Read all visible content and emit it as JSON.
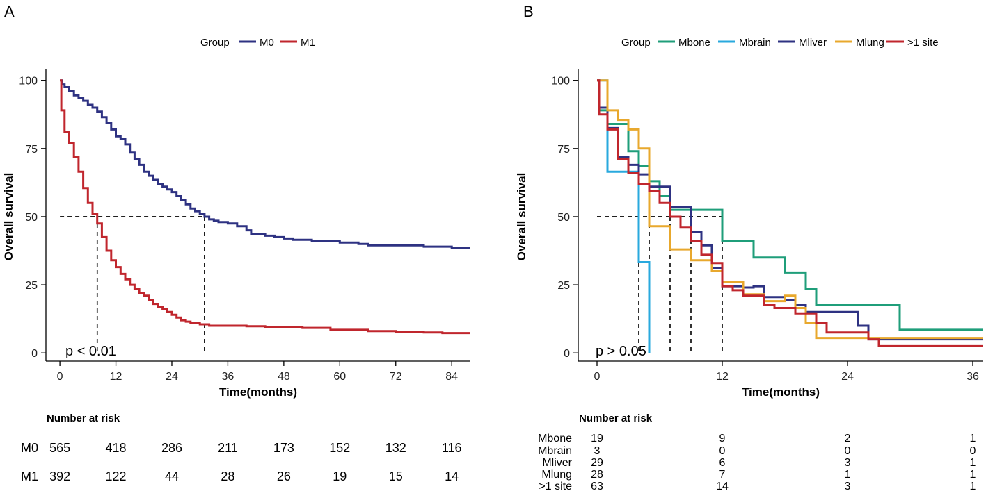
{
  "chart_data": [
    {
      "type": "line",
      "panel_label": "A",
      "legend_title": "Group",
      "xlabel": "Time(months)",
      "ylabel": "Overall survival",
      "xlim": [
        -3,
        88
      ],
      "ylim": [
        -3,
        104
      ],
      "x_ticks": [
        0,
        12,
        24,
        36,
        48,
        60,
        72,
        84
      ],
      "y_ticks": [
        0,
        25,
        50,
        75,
        100
      ],
      "p_value": "p < 0.01",
      "median_line": {
        "y": 50,
        "x_end": 31,
        "medians": [
          8,
          31
        ]
      },
      "series": [
        {
          "name": "M0",
          "color": "#2e3282",
          "points": [
            [
              0,
              100
            ],
            [
              0.5,
              98.5
            ],
            [
              1,
              97.5
            ],
            [
              2,
              96
            ],
            [
              3,
              94.5
            ],
            [
              4,
              93.5
            ],
            [
              5,
              92.5
            ],
            [
              6,
              91
            ],
            [
              7,
              90
            ],
            [
              8,
              88.5
            ],
            [
              9,
              86.5
            ],
            [
              10,
              84.5
            ],
            [
              11,
              82
            ],
            [
              12,
              79.5
            ],
            [
              13,
              78.5
            ],
            [
              14,
              76.5
            ],
            [
              15,
              73.5
            ],
            [
              16,
              71
            ],
            [
              17,
              69
            ],
            [
              18,
              66.5
            ],
            [
              19,
              65
            ],
            [
              20,
              63.5
            ],
            [
              21,
              62
            ],
            [
              22,
              61
            ],
            [
              23,
              60
            ],
            [
              24,
              59
            ],
            [
              25,
              57.5
            ],
            [
              26,
              56
            ],
            [
              27,
              54.5
            ],
            [
              28,
              53
            ],
            [
              29,
              52
            ],
            [
              30,
              51
            ],
            [
              31,
              50
            ],
            [
              32,
              49
            ],
            [
              33,
              48.5
            ],
            [
              34,
              48
            ],
            [
              36,
              47.5
            ],
            [
              38,
              46.5
            ],
            [
              40,
              45
            ],
            [
              41,
              43.5
            ],
            [
              44,
              43
            ],
            [
              46,
              42.5
            ],
            [
              48,
              42
            ],
            [
              50,
              41.5
            ],
            [
              54,
              41
            ],
            [
              60,
              40.5
            ],
            [
              64,
              40
            ],
            [
              66,
              39.5
            ],
            [
              78,
              39
            ],
            [
              84,
              38.5
            ],
            [
              88,
              38.5
            ]
          ]
        },
        {
          "name": "M1",
          "color": "#c0262d",
          "points": [
            [
              0,
              100
            ],
            [
              0.3,
              89
            ],
            [
              1,
              81
            ],
            [
              2,
              77
            ],
            [
              3,
              72
            ],
            [
              4,
              66.5
            ],
            [
              5,
              60.5
            ],
            [
              6,
              55
            ],
            [
              7,
              51
            ],
            [
              8,
              47.5
            ],
            [
              9,
              42.5
            ],
            [
              10,
              37.5
            ],
            [
              11,
              34
            ],
            [
              12,
              31.5
            ],
            [
              13,
              29
            ],
            [
              14,
              27
            ],
            [
              15,
              25
            ],
            [
              16,
              23.5
            ],
            [
              17,
              22
            ],
            [
              18,
              21
            ],
            [
              19,
              19.5
            ],
            [
              20,
              18
            ],
            [
              21,
              17
            ],
            [
              22,
              16
            ],
            [
              23,
              15
            ],
            [
              24,
              14
            ],
            [
              25,
              13
            ],
            [
              26,
              12
            ],
            [
              27,
              11.5
            ],
            [
              28,
              11
            ],
            [
              30,
              10.5
            ],
            [
              32,
              10
            ],
            [
              36,
              10
            ],
            [
              40,
              9.8
            ],
            [
              44,
              9.5
            ],
            [
              52,
              9.2
            ],
            [
              58,
              8.5
            ],
            [
              66,
              8
            ],
            [
              72,
              7.8
            ],
            [
              78,
              7.5
            ],
            [
              82,
              7.3
            ],
            [
              88,
              7.3
            ]
          ]
        }
      ],
      "risk_table": {
        "title": "Number at risk",
        "rows": [
          {
            "name": "M0",
            "values": [
              565,
              418,
              286,
              211,
              173,
              152,
              132,
              116
            ]
          },
          {
            "name": "M1",
            "values": [
              392,
              122,
              44,
              28,
              26,
              19,
              15,
              14
            ]
          }
        ]
      }
    },
    {
      "type": "line",
      "panel_label": "B",
      "legend_title": "Group",
      "xlabel": "Time(months)",
      "ylabel": "Overall survival",
      "xlim": [
        -1.8,
        37
      ],
      "ylim": [
        -3,
        104
      ],
      "x_ticks": [
        0,
        12,
        24,
        36
      ],
      "y_ticks": [
        0,
        25,
        50,
        75,
        100
      ],
      "p_value": "p > 0.05",
      "median_line": {
        "y": 50,
        "x_end": 12,
        "medians": [
          4,
          5,
          7,
          9,
          12
        ]
      },
      "series": [
        {
          "name": "Mbone",
          "color": "#1f9e7a",
          "points": [
            [
              0,
              100
            ],
            [
              0.2,
              89
            ],
            [
              1,
              84
            ],
            [
              3,
              74
            ],
            [
              4,
              68.5
            ],
            [
              5,
              63
            ],
            [
              6,
              57.5
            ],
            [
              7,
              52.5
            ],
            [
              12,
              41
            ],
            [
              15,
              35
            ],
            [
              18,
              29.5
            ],
            [
              20,
              23.5
            ],
            [
              21,
              17.5
            ],
            [
              29,
              8.5
            ],
            [
              37,
              8.5
            ]
          ]
        },
        {
          "name": "Mbrain",
          "color": "#29a9de",
          "points": [
            [
              0,
              100
            ],
            [
              1,
              66.5
            ],
            [
              4,
              33.3
            ],
            [
              5,
              0
            ]
          ]
        },
        {
          "name": "Mliver",
          "color": "#2e3282",
          "points": [
            [
              0,
              100
            ],
            [
              0.2,
              90
            ],
            [
              1,
              82.5
            ],
            [
              2,
              72
            ],
            [
              3,
              69
            ],
            [
              4,
              65.5
            ],
            [
              5,
              61
            ],
            [
              7,
              53.5
            ],
            [
              9,
              44.5
            ],
            [
              10,
              39.5
            ],
            [
              11,
              31
            ],
            [
              12,
              24.5
            ],
            [
              14,
              24
            ],
            [
              15,
              24.5
            ],
            [
              16,
              20.5
            ],
            [
              18,
              19.5
            ],
            [
              19,
              17.5
            ],
            [
              20,
              15
            ],
            [
              25,
              10
            ],
            [
              26,
              5
            ],
            [
              37,
              5
            ]
          ]
        },
        {
          "name": "Mlung",
          "color": "#e8a82d",
          "points": [
            [
              0,
              100
            ],
            [
              1,
              89
            ],
            [
              2,
              85.5
            ],
            [
              3,
              82
            ],
            [
              4,
              75
            ],
            [
              5,
              46.5
            ],
            [
              7,
              38
            ],
            [
              9,
              34
            ],
            [
              11,
              30
            ],
            [
              12,
              26
            ],
            [
              14,
              21.5
            ],
            [
              16,
              19
            ],
            [
              18,
              21
            ],
            [
              19,
              16.5
            ],
            [
              20,
              11
            ],
            [
              21,
              5.5
            ],
            [
              37,
              5.5
            ]
          ]
        },
        {
          "name": ">1 site",
          "color": "#c0262d",
          "points": [
            [
              0,
              100
            ],
            [
              0.2,
              87.5
            ],
            [
              1,
              82
            ],
            [
              2,
              71
            ],
            [
              3,
              66
            ],
            [
              4,
              62
            ],
            [
              5,
              59.5
            ],
            [
              6,
              55
            ],
            [
              7,
              50
            ],
            [
              8,
              46
            ],
            [
              9,
              41
            ],
            [
              10,
              36
            ],
            [
              11,
              33
            ],
            [
              12,
              24.5
            ],
            [
              13,
              23
            ],
            [
              14,
              21
            ],
            [
              16,
              17.5
            ],
            [
              17,
              16.5
            ],
            [
              19,
              14.5
            ],
            [
              21,
              11
            ],
            [
              22,
              7.5
            ],
            [
              26,
              5
            ],
            [
              27,
              2.5
            ],
            [
              37,
              2.5
            ]
          ]
        }
      ],
      "risk_table": {
        "title": "Number at risk",
        "rows": [
          {
            "name": "Mbone",
            "values": [
              19,
              9,
              2,
              1
            ]
          },
          {
            "name": "Mbrain",
            "values": [
              3,
              0,
              0,
              0
            ]
          },
          {
            "name": "Mliver",
            "values": [
              29,
              6,
              3,
              1
            ]
          },
          {
            "name": "Mlung",
            "values": [
              28,
              7,
              1,
              1
            ]
          },
          {
            "name": ">1 site",
            "values": [
              63,
              14,
              3,
              1
            ]
          }
        ]
      }
    }
  ]
}
